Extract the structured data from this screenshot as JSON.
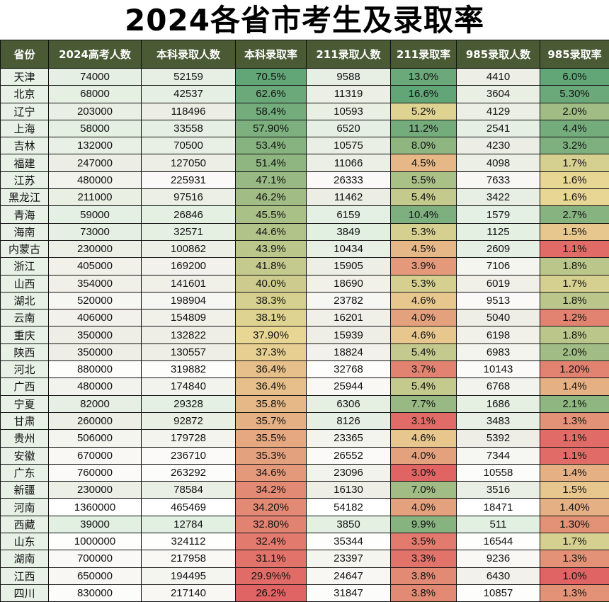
{
  "title": "2024各省市考生及录取率",
  "colors": {
    "header_bg": "#4a5a34",
    "header_text": "#ffffff",
    "rate_low": "#e06464",
    "rate_mid": "#e8d694",
    "rate_high": "#62a678",
    "count_low": "#e2f0e2",
    "count_mid": "#efeee6",
    "count_high": "#ffffff"
  },
  "chart_data": {
    "type": "table",
    "columns": [
      "省份",
      "2024高考人数",
      "本科录取人数",
      "本科录取率",
      "211录取人数",
      "211录取率",
      "985录取人数",
      "985录取率"
    ],
    "rows": [
      [
        "天津",
        "74000",
        "52159",
        "70.5%",
        "9588",
        "13.0%",
        "4410",
        "6.0%"
      ],
      [
        "北京",
        "68000",
        "42537",
        "62.6%",
        "11319",
        "16.6%",
        "3604",
        "5.30%"
      ],
      [
        "辽宁",
        "203000",
        "118496",
        "58.4%",
        "10593",
        "5.2%",
        "4129",
        "2.0%"
      ],
      [
        "上海",
        "58000",
        "33558",
        "57.90%",
        "6520",
        "11.2%",
        "2541",
        "4.4%"
      ],
      [
        "吉林",
        "132000",
        "70500",
        "53.4%",
        "10575",
        "8.0%",
        "4230",
        "3.2%"
      ],
      [
        "福建",
        "247000",
        "127050",
        "51.4%",
        "11066",
        "4.5%",
        "4098",
        "1.7%"
      ],
      [
        "江苏",
        "480000",
        "225931",
        "47.1%",
        "26333",
        "5.5%",
        "7633",
        "1.6%"
      ],
      [
        "黑龙江",
        "211000",
        "97516",
        "46.2%",
        "11462",
        "5.4%",
        "3422",
        "1.6%"
      ],
      [
        "青海",
        "59000",
        "26846",
        "45.5%",
        "6159",
        "10.4%",
        "1579",
        "2.7%"
      ],
      [
        "海南",
        "73000",
        "32571",
        "44.6%",
        "3849",
        "5.3%",
        "1125",
        "1.5%"
      ],
      [
        "内蒙古",
        "230000",
        "100862",
        "43.9%",
        "10434",
        "4.5%",
        "2609",
        "1.1%"
      ],
      [
        "浙江",
        "405000",
        "169200",
        "41.8%",
        "15905",
        "3.9%",
        "7106",
        "1.8%"
      ],
      [
        "山西",
        "354000",
        "141601",
        "40.0%",
        "18690",
        "5.3%",
        "6019",
        "1.7%"
      ],
      [
        "湖北",
        "520000",
        "198904",
        "38.3%",
        "23782",
        "4.6%",
        "9513",
        "1.8%"
      ],
      [
        "云南",
        "406000",
        "154809",
        "38.1%",
        "16201",
        "4.0%",
        "5040",
        "1.2%"
      ],
      [
        "重庆",
        "350000",
        "132822",
        "37.90%",
        "15939",
        "4.6%",
        "6198",
        "1.8%"
      ],
      [
        "陕西",
        "350000",
        "130557",
        "37.3%",
        "18824",
        "5.4%",
        "6983",
        "2.0%"
      ],
      [
        "河北",
        "880000",
        "319882",
        "36.4%",
        "32768",
        "3.7%",
        "10143",
        "1.20%"
      ],
      [
        "广西",
        "480000",
        "174840",
        "36.4%",
        "25944",
        "5.4%",
        "6768",
        "1.4%"
      ],
      [
        "宁夏",
        "82000",
        "29328",
        "35.8%",
        "6306",
        "7.7%",
        "1686",
        "2.1%"
      ],
      [
        "甘肃",
        "260000",
        "92872",
        "35.7%",
        "8126",
        "3.1%",
        "3483",
        "1.3%"
      ],
      [
        "贵州",
        "506000",
        "179728",
        "35.5%",
        "23365",
        "4.6%",
        "5392",
        "1.1%"
      ],
      [
        "安徽",
        "670000",
        "236710",
        "35.3%",
        "26552",
        "4.0%",
        "7344",
        "1.1%"
      ],
      [
        "广东",
        "760000",
        "263292",
        "34.6%",
        "23096",
        "3.0%",
        "10558",
        "1.4%"
      ],
      [
        "新疆",
        "230000",
        "78584",
        "34.2%",
        "16130",
        "7.0%",
        "3516",
        "1.5%"
      ],
      [
        "河南",
        "1360000",
        "465469",
        "34.20%",
        "54182",
        "4.0%",
        "18471",
        "1.40%"
      ],
      [
        "西藏",
        "39000",
        "12784",
        "32.80%",
        "3850",
        "9.9%",
        "511",
        "1.30%"
      ],
      [
        "山东",
        "1000000",
        "324112",
        "32.4%",
        "35344",
        "3.5%",
        "16544",
        "1.7%"
      ],
      [
        "湖南",
        "700000",
        "217958",
        "31.1%",
        "23397",
        "3.3%",
        "9236",
        "1.3%"
      ],
      [
        "江西",
        "650000",
        "194495",
        "29.9%%",
        "24647",
        "3.8%",
        "6430",
        "1.0%"
      ],
      [
        "四川",
        "830000",
        "217140",
        "26.2%",
        "31847",
        "3.8%",
        "10857",
        "1.3%"
      ]
    ]
  }
}
